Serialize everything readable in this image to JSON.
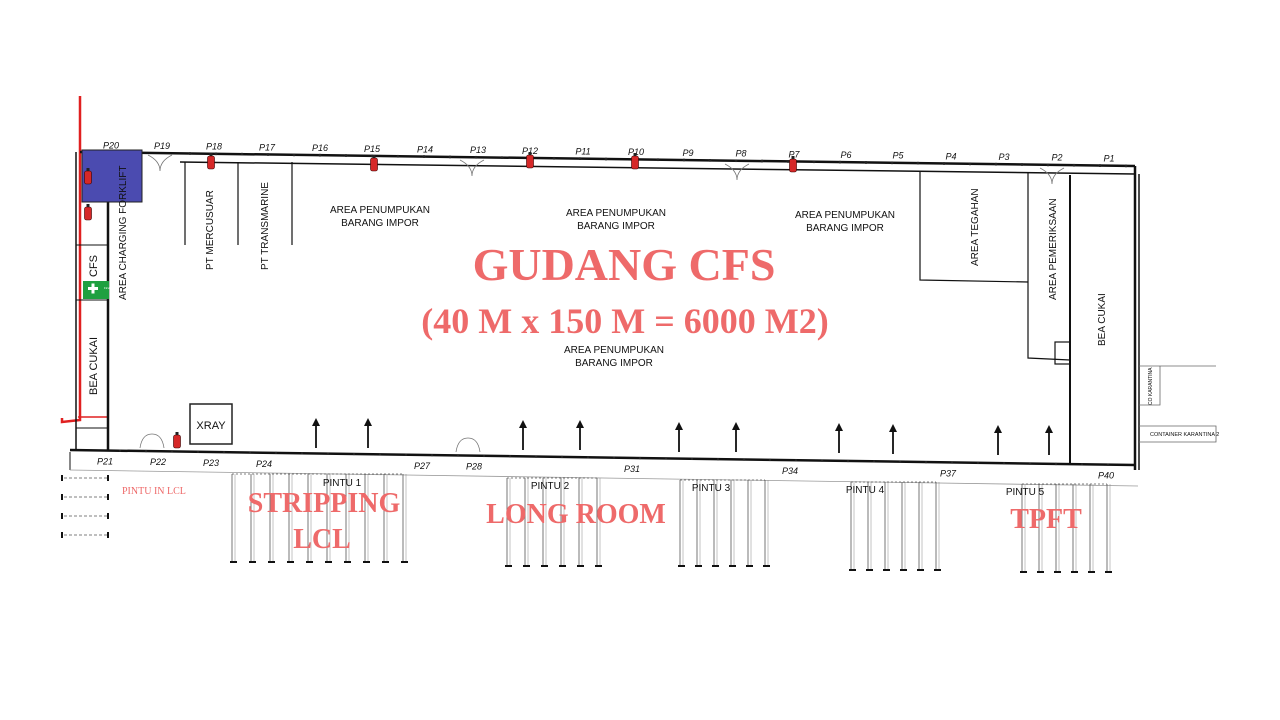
{
  "title": "GUDANG CFS",
  "subtitle": "(40 M x 150 M = 6000 M2)",
  "areas": {
    "storage_1": [
      "AREA PENUMPUKAN",
      "BARANG IMPOR"
    ],
    "storage_2": [
      "AREA PENUMPUKAN",
      "BARANG IMPOR"
    ],
    "storage_3": [
      "AREA PENUMPUKAN",
      "BARANG IMPOR"
    ],
    "storage_4": [
      "AREA PENUMPUKAN",
      "BARANG IMPOR"
    ],
    "pt_mercusuar": "PT MERCUSUAR",
    "pt_transmarine": "PT TRANSMARINE",
    "area_tegahan": "AREA TEGAHAN",
    "area_pemeriksaan": "AREA PEMERIKSAAN",
    "bea_cukai_right": "BEA CUKAI",
    "bea_cukai_left": "BEA CUKAI",
    "cfs": "CFS",
    "charging": "AREA CHARGING FORKLIFT",
    "xray": "XRAY",
    "first_aid": "First Aid",
    "co_karantina": "CO KARANTINA",
    "container_karantina": "CONTAINER KARANTINA 2"
  },
  "pillars_top": [
    "P20",
    "P19",
    "P18",
    "P17",
    "P16",
    "P15",
    "P14",
    "P13",
    "P12",
    "P11",
    "P10",
    "P9",
    "P8",
    "P7",
    "P6",
    "P5",
    "P4",
    "P3",
    "P2",
    "P1"
  ],
  "pillars_bottom": [
    "P21",
    "P22",
    "P23",
    "P24",
    "P27",
    "P28",
    "P31",
    "P34",
    "P37",
    "P40"
  ],
  "doors": [
    "PINTU 1",
    "PINTU 2",
    "PINTU 3",
    "PINTU 4",
    "PINTU 5"
  ],
  "pintu_in_lcl": "PINTU IN LCL",
  "zones": {
    "stripping_1": "STRIPPING",
    "stripping_2": "LCL",
    "long_room": "LONG ROOM",
    "tpft": "TPFT"
  },
  "colors": {
    "accent_text": "#ee6a6a",
    "charging_area": "#4b4bb0",
    "boundary_red": "#e02020",
    "extinguisher": "#d62828",
    "first_aid": "#1fa040"
  }
}
